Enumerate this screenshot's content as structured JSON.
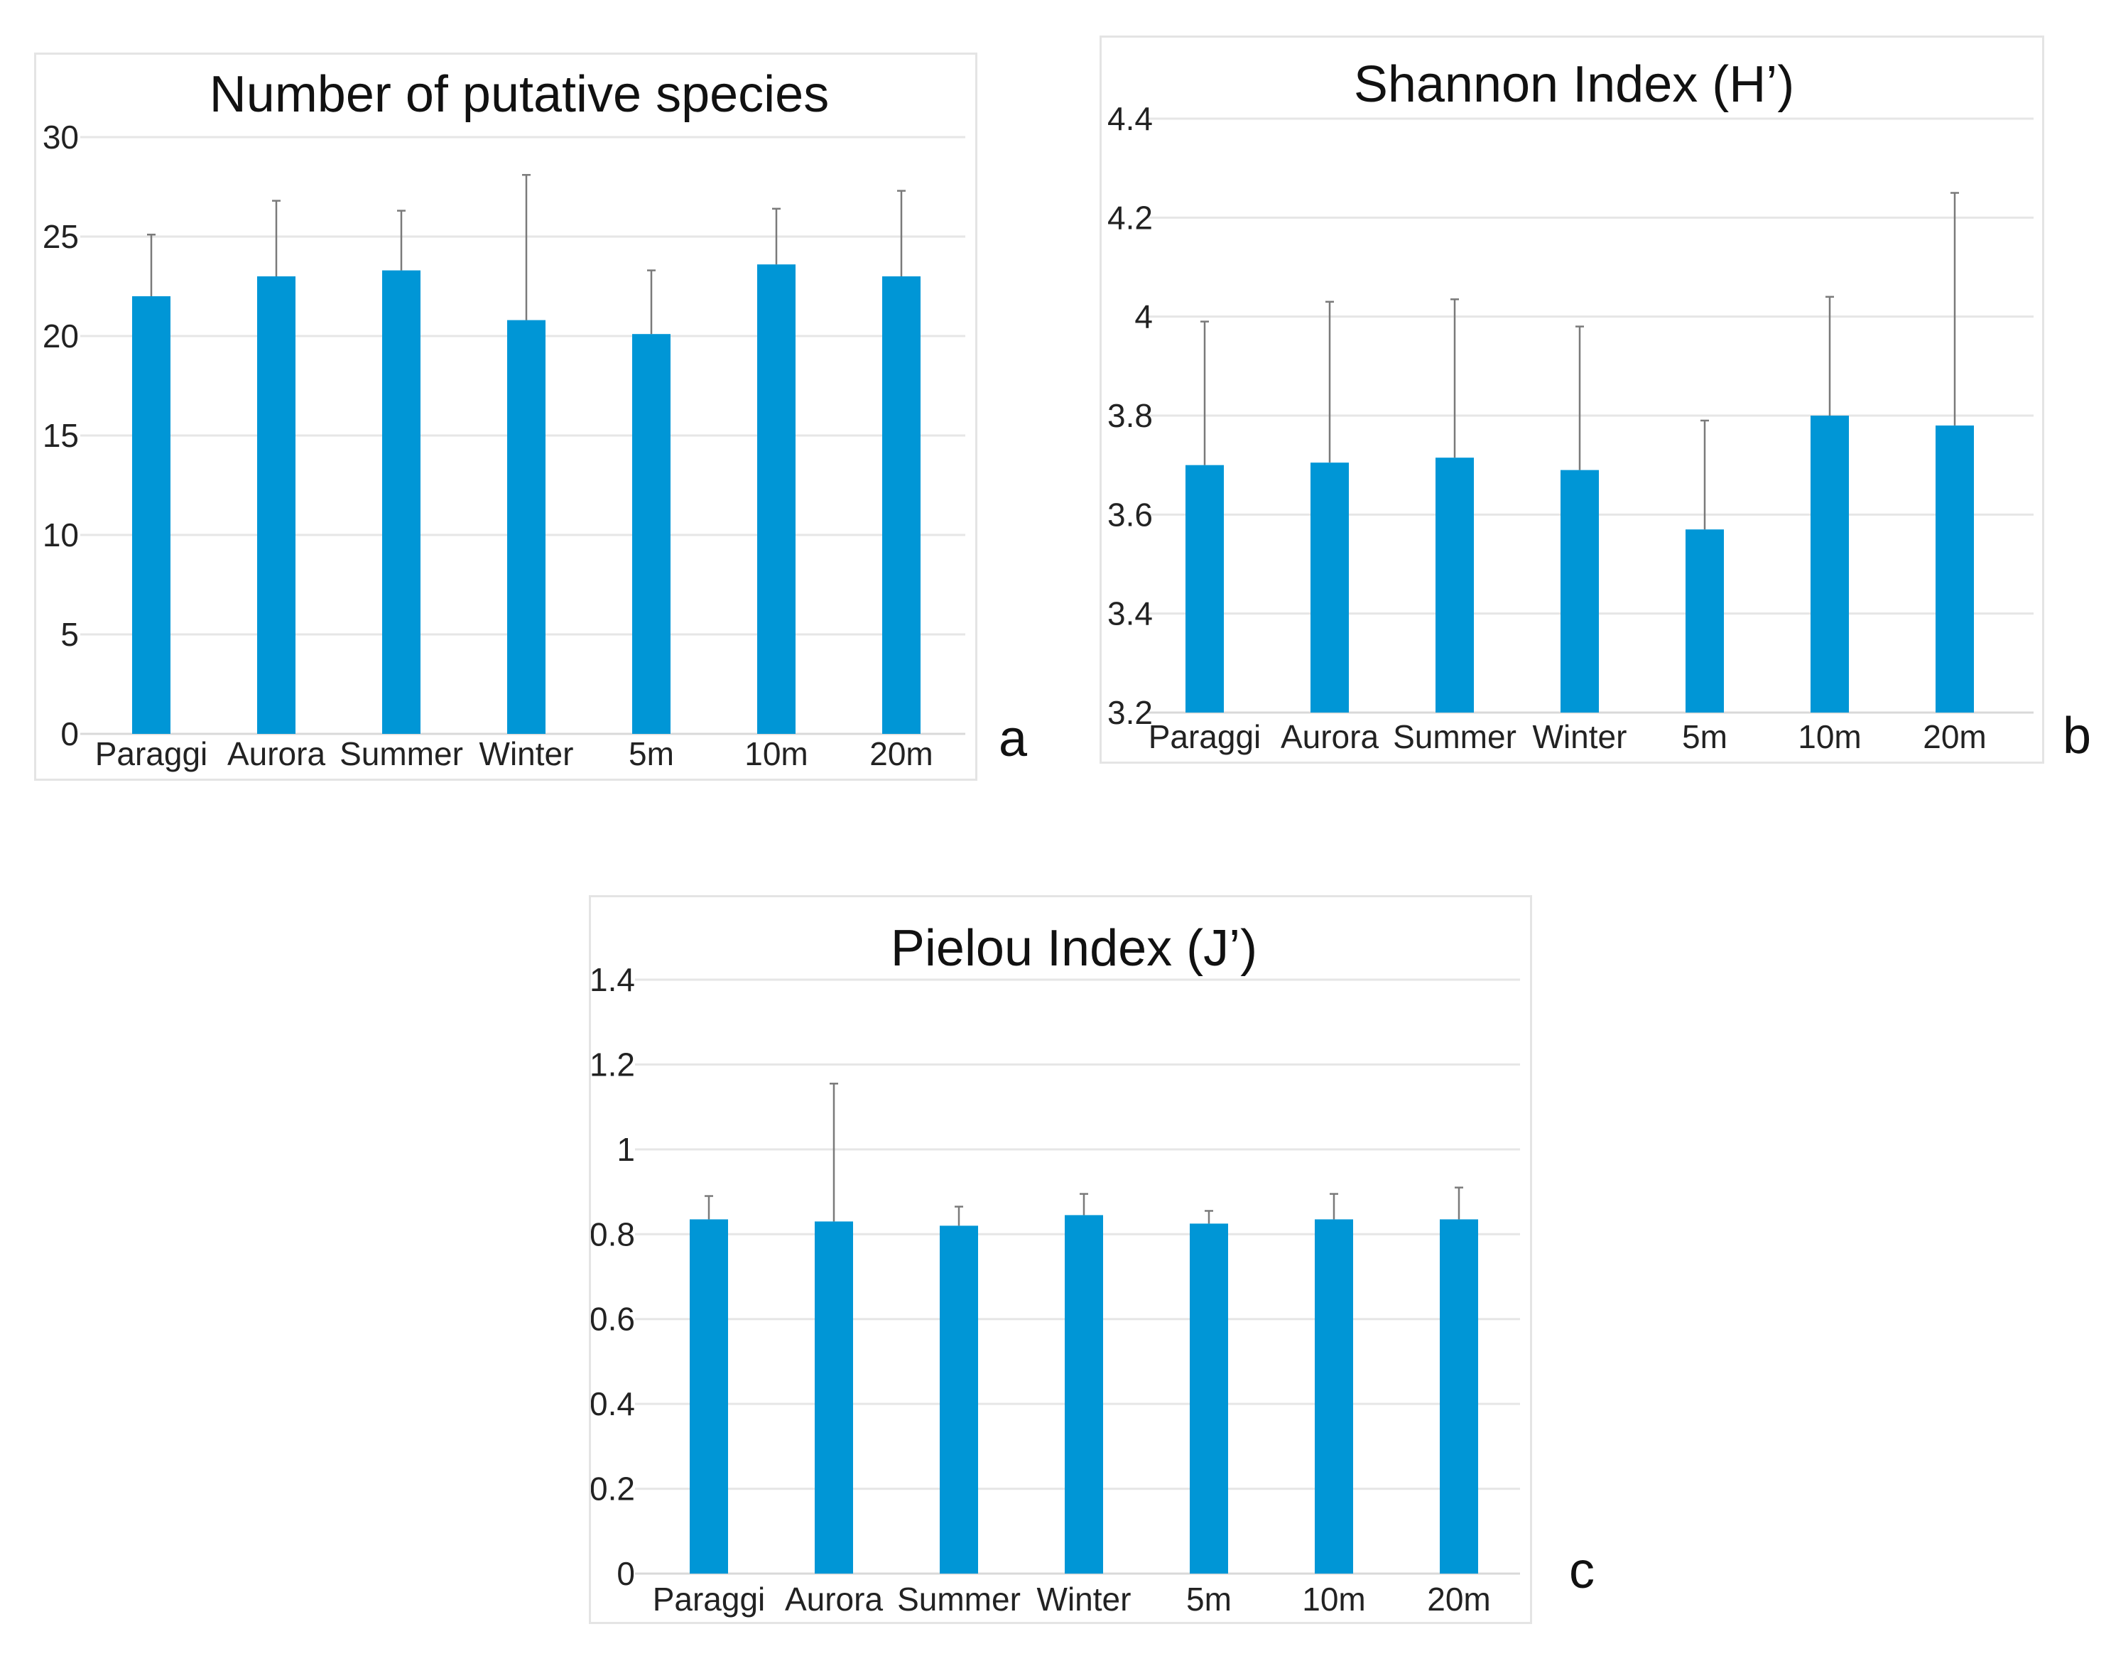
{
  "chart_data": [
    {
      "id": "a",
      "type": "bar",
      "title": "Number of putative species",
      "panel_label": "a",
      "categories": [
        "Paraggi",
        "Aurora",
        "Summer",
        "Winter",
        "5m",
        "10m",
        "20m"
      ],
      "values": [
        22,
        23,
        23.3,
        20.8,
        20.1,
        23.6,
        23
      ],
      "error_upper": [
        25.1,
        26.8,
        26.3,
        28.1,
        23.3,
        26.4,
        27.3
      ],
      "ylim": [
        0,
        30
      ],
      "yticks": [
        "0",
        "5",
        "10",
        "15",
        "20",
        "25",
        "30"
      ],
      "ytick_values": [
        0,
        5,
        10,
        15,
        20,
        25,
        30
      ],
      "color": "#0096d6",
      "xlabel": "",
      "ylabel": ""
    },
    {
      "id": "b",
      "type": "bar",
      "title": "Shannon Index (H’)",
      "panel_label": "b",
      "categories": [
        "Paraggi",
        "Aurora",
        "Summer",
        "Winter",
        "5m",
        "10m",
        "20m"
      ],
      "values": [
        3.7,
        3.705,
        3.715,
        3.69,
        3.57,
        3.8,
        3.78
      ],
      "error_upper": [
        3.99,
        4.03,
        4.035,
        3.98,
        3.79,
        4.04,
        4.25
      ],
      "ylim": [
        3.2,
        4.4
      ],
      "yticks": [
        "3.2",
        "3.4",
        "3.6",
        "3.8",
        "4",
        "4.2",
        "4.4"
      ],
      "ytick_values": [
        3.2,
        3.4,
        3.6,
        3.8,
        4.0,
        4.2,
        4.4
      ],
      "color": "#0096d6",
      "xlabel": "",
      "ylabel": ""
    },
    {
      "id": "c",
      "type": "bar",
      "title": "Pielou Index (J’)",
      "panel_label": "c",
      "categories": [
        "Paraggi",
        "Aurora",
        "Summer",
        "Winter",
        "5m",
        "10m",
        "20m"
      ],
      "values": [
        0.835,
        0.83,
        0.82,
        0.845,
        0.825,
        0.835,
        0.835
      ],
      "error_upper": [
        0.89,
        1.155,
        0.865,
        0.895,
        0.855,
        0.895,
        0.91
      ],
      "ylim": [
        0,
        1.4
      ],
      "yticks": [
        "0",
        "0.2",
        "0.4",
        "0.6",
        "0.8",
        "1",
        "1.2",
        "1.4"
      ],
      "ytick_values": [
        0,
        0.2,
        0.4,
        0.6,
        0.8,
        1.0,
        1.2,
        1.4
      ],
      "color": "#0096d6",
      "xlabel": "",
      "ylabel": ""
    }
  ]
}
